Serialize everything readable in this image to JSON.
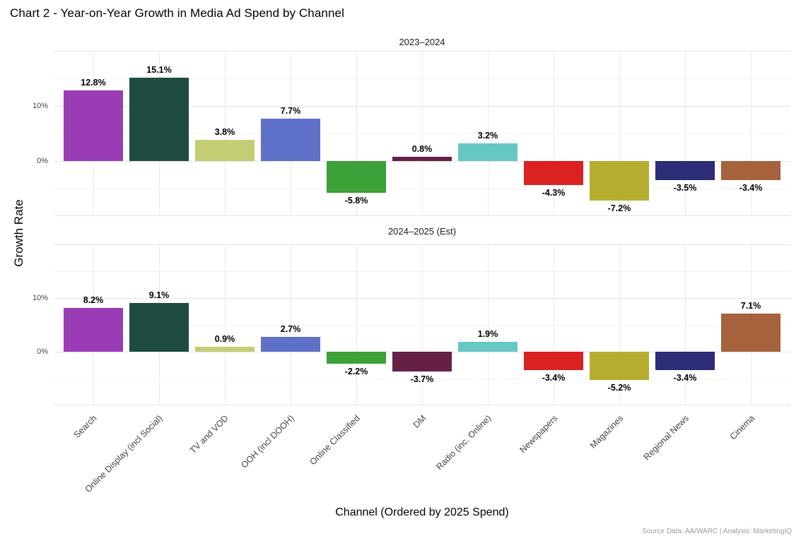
{
  "chart_data": {
    "type": "bar",
    "title": "Chart 2 - Year-on-Year Growth in Media Ad Spend by Channel",
    "xlabel": "Channel (Ordered by 2025 Spend)",
    "ylabel": "Growth Rate",
    "source_note": "Source Data: AA/WARC | Analysis: MarketingIQ",
    "categories": [
      "Search",
      "Online Display (incl Social)",
      "TV and VOD",
      "OOH (incl DOOH)",
      "Online Classified",
      "DM",
      "Radio (inc. Online)",
      "Newspapers",
      "Magazines",
      "Regional News",
      "Cinema"
    ],
    "bar_colors": [
      "#993CB6",
      "#1D4B42",
      "#C5CD74",
      "#5F70C8",
      "#3BA138",
      "#662047",
      "#65C8C3",
      "#DB2121",
      "#B6AD30",
      "#2D2C76",
      "#A5623C"
    ],
    "facets": [
      {
        "label": "2023–2024",
        "values": [
          12.8,
          15.1,
          3.8,
          7.7,
          -5.8,
          0.8,
          3.2,
          -4.3,
          -7.2,
          -3.5,
          -3.4
        ]
      },
      {
        "label": "2024–2025 (Est)",
        "values": [
          8.2,
          9.1,
          0.9,
          2.7,
          -2.2,
          -3.7,
          1.9,
          -3.4,
          -5.2,
          -3.4,
          7.1
        ]
      }
    ],
    "value_suffix": "%",
    "ylim": [
      -10,
      20
    ],
    "y_major_breaks": [
      -10,
      0,
      10,
      20
    ],
    "y_minor_breaks": [
      -5,
      5,
      15
    ],
    "y_axis_ticks": [
      {
        "value": 10,
        "label": "10%"
      },
      {
        "value": 0,
        "label": "0%"
      }
    ],
    "grid": true,
    "legend_position": "none",
    "background": "#ffffff"
  }
}
